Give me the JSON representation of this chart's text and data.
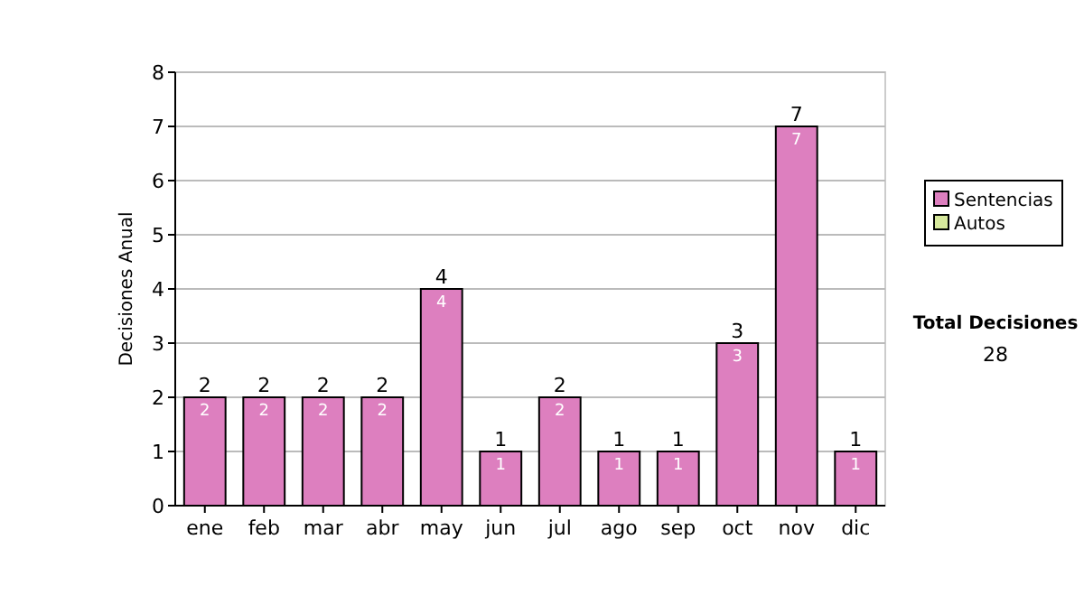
{
  "chart_data": {
    "type": "bar",
    "stacked": true,
    "ylabel": "Decisiones Anual",
    "categories": [
      "ene",
      "feb",
      "mar",
      "abr",
      "may",
      "jun",
      "jul",
      "ago",
      "sep",
      "oct",
      "nov",
      "dic"
    ],
    "series": [
      {
        "name": "Sentencias",
        "color": "#dd7fbf",
        "values": [
          2,
          2,
          2,
          2,
          4,
          1,
          2,
          1,
          1,
          3,
          7,
          1
        ],
        "value_labels": [
          "2",
          "2",
          "2",
          "2",
          "4",
          "1",
          "2",
          "1",
          "1",
          "3",
          "7",
          "1"
        ]
      },
      {
        "name": "Autos",
        "color": "#d6e89c",
        "values": [
          0,
          0,
          0,
          0,
          0,
          0,
          0,
          0,
          0,
          0,
          0,
          0
        ],
        "value_labels": [
          null,
          null,
          null,
          null,
          null,
          null,
          null,
          null,
          null,
          null,
          null,
          null
        ]
      }
    ],
    "totals": [
      "2",
      "2",
      "2",
      "2",
      "4",
      "1",
      "2",
      "1",
      "1",
      "3",
      "7",
      "1"
    ],
    "ylim": [
      0,
      8
    ],
    "yticks": [
      0,
      1,
      2,
      3,
      4,
      5,
      6,
      7,
      8
    ],
    "grid": "y",
    "legend": "right",
    "annotations": [
      "Total Decisiones",
      "28"
    ]
  }
}
